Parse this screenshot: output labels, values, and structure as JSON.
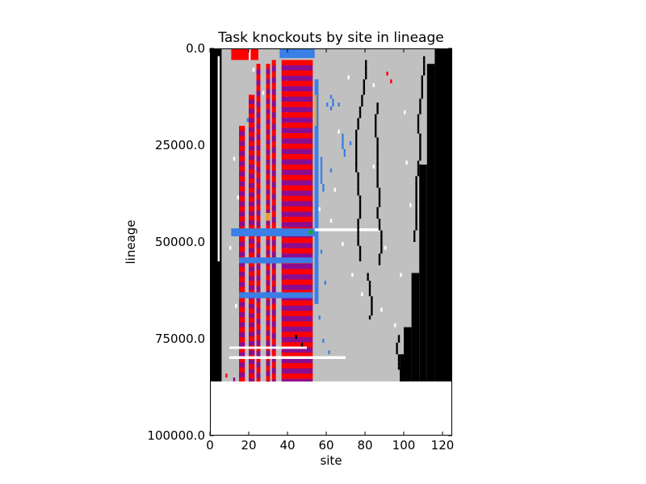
{
  "chart_data": {
    "type": "heatmap",
    "title": "Task knockouts by site in lineage",
    "xlabel": "site",
    "ylabel": "lineage",
    "xlim": [
      0,
      125
    ],
    "ylim": [
      0,
      100000
    ],
    "y_inverted": true,
    "x_ticks": [
      0,
      20,
      40,
      60,
      80,
      100,
      120
    ],
    "x_tick_labels": [
      "0",
      "20",
      "40",
      "60",
      "80",
      "100",
      "120"
    ],
    "y_ticks": [
      0,
      25000,
      50000,
      75000,
      100000
    ],
    "y_tick_labels": [
      "0.0",
      "25000.0",
      "50000.0",
      "75000.0",
      "100000.0"
    ],
    "data_extent": {
      "x": [
        0,
        125
      ],
      "y": [
        0,
        86000
      ]
    },
    "categories": [
      {
        "code": "neutral",
        "color": "#c0c0c0"
      },
      {
        "code": "lethal",
        "color": "#000000"
      },
      {
        "code": "task-a",
        "color": "#ff0000"
      },
      {
        "code": "task-b",
        "color": "#8b0d8f"
      },
      {
        "code": "task-c",
        "color": "#3a7fe6"
      },
      {
        "code": "task-d",
        "color": "#f0a020"
      },
      {
        "code": "task-e",
        "color": "#1fa81f"
      },
      {
        "code": "beneficial",
        "color": "#ffffff"
      }
    ],
    "regions": [
      {
        "cat": "lethal",
        "x": [
          0,
          6
        ],
        "y": [
          0,
          86000
        ]
      },
      {
        "cat": "beneficial",
        "x": [
          4,
          5
        ],
        "y": [
          2000,
          55000
        ]
      },
      {
        "cat": "lethal",
        "x": [
          116,
          125
        ],
        "y": [
          0,
          86000
        ]
      },
      {
        "cat": "lethal",
        "x": [
          112,
          116
        ],
        "y": [
          4000,
          86000
        ]
      },
      {
        "cat": "lethal",
        "x": [
          108,
          112
        ],
        "y": [
          30000,
          86000
        ]
      },
      {
        "cat": "lethal",
        "x": [
          104,
          108
        ],
        "y": [
          58000,
          86000
        ]
      },
      {
        "cat": "lethal",
        "x": [
          100,
          104
        ],
        "y": [
          72000,
          86000
        ]
      },
      {
        "cat": "lethal",
        "x": [
          98,
          100
        ],
        "y": [
          79000,
          86000
        ]
      },
      {
        "cat": "task-a",
        "x": [
          11,
          25
        ],
        "y": [
          0,
          3000
        ]
      },
      {
        "cat": "beneficial",
        "x": [
          20,
          21
        ],
        "y": [
          0,
          3000
        ]
      },
      {
        "cat": "task-c",
        "x": [
          36,
          54
        ],
        "y": [
          0,
          2500
        ]
      },
      {
        "cat": "task-a",
        "x": [
          15,
          18
        ],
        "y": [
          20000,
          86000
        ]
      },
      {
        "cat": "task-a",
        "x": [
          20,
          23
        ],
        "y": [
          12000,
          86000
        ]
      },
      {
        "cat": "task-a",
        "x": [
          24,
          26
        ],
        "y": [
          4000,
          86000
        ]
      },
      {
        "cat": "task-a",
        "x": [
          29,
          31
        ],
        "y": [
          4000,
          86000
        ]
      },
      {
        "cat": "task-a",
        "x": [
          32,
          34
        ],
        "y": [
          3000,
          86000
        ]
      },
      {
        "cat": "task-a",
        "x": [
          37,
          53
        ],
        "y": [
          3000,
          86000
        ]
      },
      {
        "cat": "beneficial",
        "x": [
          39,
          40
        ],
        "y": [
          3000,
          60000
        ]
      },
      {
        "cat": "task-c",
        "x": [
          54,
          56
        ],
        "y": [
          8000,
          66000
        ]
      },
      {
        "cat": "task-d",
        "x": [
          54,
          55
        ],
        "y": [
          12000,
          20000
        ]
      },
      {
        "cat": "task-c",
        "x": [
          11,
          55
        ],
        "y": [
          46500,
          48500
        ]
      },
      {
        "cat": "task-c",
        "x": [
          15,
          53
        ],
        "y": [
          54000,
          55500
        ]
      },
      {
        "cat": "task-c",
        "x": [
          15,
          53
        ],
        "y": [
          63000,
          64500
        ]
      },
      {
        "cat": "task-d",
        "x": [
          29,
          31
        ],
        "y": [
          42500,
          44500
        ]
      },
      {
        "cat": "task-e",
        "x": [
          51,
          53
        ],
        "y": [
          47000,
          48000
        ]
      },
      {
        "cat": "beneficial",
        "x": [
          54,
          88
        ],
        "y": [
          46500,
          47200
        ]
      },
      {
        "cat": "beneficial",
        "x": [
          10,
          70
        ],
        "y": [
          79500,
          80200
        ]
      },
      {
        "cat": "beneficial",
        "x": [
          10,
          50
        ],
        "y": [
          77000,
          77600
        ]
      }
    ],
    "stripe_bands": [
      {
        "x": [
          15,
          18
        ],
        "y": [
          20000,
          86000
        ],
        "colors": [
          "task-a",
          "task-b"
        ],
        "period": 2600
      },
      {
        "x": [
          20,
          23
        ],
        "y": [
          12000,
          86000
        ],
        "colors": [
          "task-a",
          "task-b"
        ],
        "period": 2400
      },
      {
        "x": [
          24,
          26
        ],
        "y": [
          4000,
          86000
        ],
        "colors": [
          "task-a",
          "task-b"
        ],
        "period": 2800
      },
      {
        "x": [
          29,
          31
        ],
        "y": [
          4000,
          86000
        ],
        "colors": [
          "task-a",
          "task-b"
        ],
        "period": 2600
      },
      {
        "x": [
          32,
          34
        ],
        "y": [
          3000,
          86000
        ],
        "colors": [
          "task-a",
          "task-b"
        ],
        "period": 3000
      },
      {
        "x": [
          37,
          53
        ],
        "y": [
          3000,
          86000
        ],
        "colors": [
          "task-a",
          "task-b"
        ],
        "period": 2700
      }
    ],
    "traces": [
      {
        "cat": "lethal",
        "points": [
          [
            80,
            4000
          ],
          [
            79,
            10000
          ],
          [
            77,
            16000
          ],
          [
            75,
            22000
          ],
          [
            75,
            29000
          ],
          [
            76,
            35000
          ],
          [
            77,
            40000
          ],
          [
            76,
            47000
          ],
          [
            77,
            55000
          ]
        ]
      },
      {
        "cat": "lethal",
        "points": [
          [
            86,
            14000
          ],
          [
            85,
            19000
          ],
          [
            86,
            26000
          ],
          [
            86,
            33000
          ],
          [
            87,
            38000
          ],
          [
            86,
            42000
          ],
          [
            88,
            48000
          ],
          [
            87,
            56000
          ]
        ]
      },
      {
        "cat": "lethal",
        "points": [
          [
            81,
            58000
          ],
          [
            82,
            62000
          ],
          [
            83,
            66000
          ],
          [
            82,
            70000
          ]
        ]
      },
      {
        "cat": "lethal",
        "points": [
          [
            97,
            74000
          ],
          [
            96,
            77000
          ],
          [
            97,
            80000
          ],
          [
            98,
            86000
          ]
        ]
      },
      {
        "cat": "lethal",
        "points": [
          [
            110,
            2000
          ],
          [
            109,
            10000
          ],
          [
            107,
            18000
          ],
          [
            108,
            26000
          ],
          [
            106,
            34000
          ],
          [
            106,
            42000
          ],
          [
            105,
            50000
          ]
        ]
      },
      {
        "cat": "task-c",
        "points": [
          [
            68,
            22000
          ],
          [
            68,
            25000
          ],
          [
            70,
            28000
          ]
        ]
      },
      {
        "cat": "task-c",
        "points": [
          [
            62,
            12000
          ],
          [
            63,
            14000
          ],
          [
            61,
            16000
          ]
        ]
      },
      {
        "cat": "task-c",
        "points": [
          [
            57,
            28000
          ],
          [
            57,
            33000
          ],
          [
            58,
            37000
          ]
        ]
      }
    ],
    "speckles": [
      [
        80,
        3000,
        "lethal"
      ],
      [
        91,
        6000,
        "task-a"
      ],
      [
        93,
        8000,
        "task-a"
      ],
      [
        84,
        9000,
        "beneficial"
      ],
      [
        71,
        7000,
        "beneficial"
      ],
      [
        66,
        21000,
        "beneficial"
      ],
      [
        60,
        14000,
        "task-c"
      ],
      [
        66,
        14000,
        "task-c"
      ],
      [
        72,
        24000,
        "task-c"
      ],
      [
        62,
        31000,
        "task-c"
      ],
      [
        64,
        36000,
        "beneficial"
      ],
      [
        56,
        41000,
        "beneficial"
      ],
      [
        68,
        50000,
        "beneficial"
      ],
      [
        90,
        51000,
        "beneficial"
      ],
      [
        73,
        58000,
        "beneficial"
      ],
      [
        78,
        63000,
        "beneficial"
      ],
      [
        88,
        67000,
        "beneficial"
      ],
      [
        95,
        71000,
        "beneficial"
      ],
      [
        58,
        75000,
        "task-c"
      ],
      [
        61,
        78000,
        "task-c"
      ],
      [
        12,
        28000,
        "beneficial"
      ],
      [
        14,
        38000,
        "beneficial"
      ],
      [
        10,
        51000,
        "beneficial"
      ],
      [
        13,
        66000,
        "beneficial"
      ],
      [
        19,
        18000,
        "task-c"
      ],
      [
        22,
        5000,
        "beneficial"
      ],
      [
        27,
        11000,
        "beneficial"
      ],
      [
        44,
        74000,
        "lethal"
      ],
      [
        47,
        76000,
        "lethal"
      ],
      [
        8,
        84000,
        "task-a"
      ],
      [
        12,
        85000,
        "task-b"
      ],
      [
        100,
        16000,
        "beneficial"
      ],
      [
        103,
        40000,
        "beneficial"
      ],
      [
        98,
        58000,
        "beneficial"
      ],
      [
        101,
        29000,
        "beneficial"
      ],
      [
        57,
        52000,
        "task-c"
      ],
      [
        59,
        60000,
        "task-c"
      ],
      [
        56,
        69000,
        "task-c"
      ],
      [
        62,
        44000,
        "beneficial"
      ],
      [
        84,
        30000,
        "beneficial"
      ]
    ]
  }
}
